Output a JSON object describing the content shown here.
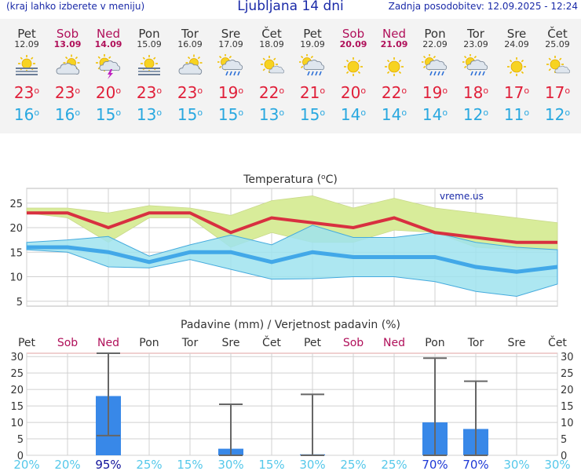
{
  "header": {
    "left": "(kraj lahko izberete v meniju)",
    "title": "Ljubljana 14 dni",
    "right": "Zadnja posodobitev: 12.09.2025 - 12:24"
  },
  "days": [
    {
      "name": "Pet",
      "date": "12.09",
      "weekend": false,
      "icon": "sun-cloud-mist-icon",
      "hi": "23",
      "lo": "16"
    },
    {
      "name": "Sob",
      "date": "13.09",
      "weekend": true,
      "icon": "sun-cloud-icon",
      "hi": "23",
      "lo": "16"
    },
    {
      "name": "Ned",
      "date": "14.09",
      "weekend": true,
      "icon": "thunderstorm-icon",
      "hi": "20",
      "lo": "15"
    },
    {
      "name": "Pon",
      "date": "15.09",
      "weekend": false,
      "icon": "sun-cloud-mist-icon",
      "hi": "23",
      "lo": "13"
    },
    {
      "name": "Tor",
      "date": "16.09",
      "weekend": false,
      "icon": "sun-cloud-icon",
      "hi": "23",
      "lo": "15"
    },
    {
      "name": "Sre",
      "date": "17.09",
      "weekend": false,
      "icon": "sun-cloud-rain-icon",
      "hi": "19",
      "lo": "15"
    },
    {
      "name": "Čet",
      "date": "18.09",
      "weekend": false,
      "icon": "sun-small-cloud-icon",
      "hi": "22",
      "lo": "13"
    },
    {
      "name": "Pet",
      "date": "19.09",
      "weekend": false,
      "icon": "sun-cloud-rain-icon",
      "hi": "21",
      "lo": "15"
    },
    {
      "name": "Sob",
      "date": "20.09",
      "weekend": true,
      "icon": "sun-icon",
      "hi": "20",
      "lo": "14"
    },
    {
      "name": "Ned",
      "date": "21.09",
      "weekend": true,
      "icon": "sun-icon",
      "hi": "22",
      "lo": "14"
    },
    {
      "name": "Pon",
      "date": "22.09",
      "weekend": false,
      "icon": "sun-cloud-rain-icon",
      "hi": "19",
      "lo": "14"
    },
    {
      "name": "Tor",
      "date": "23.09",
      "weekend": false,
      "icon": "sun-cloud-rain-icon",
      "hi": "18",
      "lo": "12"
    },
    {
      "name": "Sre",
      "date": "24.09",
      "weekend": false,
      "icon": "sun-icon",
      "hi": "17",
      "lo": "11"
    },
    {
      "name": "Čet",
      "date": "25.09",
      "weekend": false,
      "icon": "sun-small-cloud-icon",
      "hi": "17",
      "lo": "12"
    }
  ],
  "colors": {
    "max": "#d83040",
    "min": "#42a8e8",
    "maxband": "#d8ec9a",
    "minband": "#9fe3ee",
    "overlap": "#8fd87e",
    "bar": "#3888e8",
    "weekend": "#b0105a",
    "grid": "#d0d0d0"
  },
  "chart_data": [
    {
      "type": "line",
      "title": "Temperatura (°C)",
      "title_text": "Temperatura (",
      "title_unit": "C)",
      "watermark": "vreme.us",
      "ylim": [
        4,
        28
      ],
      "yticks": [
        5,
        10,
        15,
        20,
        25
      ],
      "grid": true,
      "x": [
        "12.09",
        "13.09",
        "14.09",
        "15.09",
        "16.09",
        "17.09",
        "18.09",
        "19.09",
        "20.09",
        "21.09",
        "22.09",
        "23.09",
        "24.09",
        "25.09"
      ],
      "series": [
        {
          "values": [
            23,
            23,
            20,
            23,
            23,
            19,
            22,
            21,
            20,
            22,
            19,
            18,
            17,
            17
          ]
        },
        {
          "values": [
            16,
            16,
            15,
            13,
            15,
            15,
            13,
            15,
            14,
            14,
            14,
            12,
            11,
            12
          ]
        },
        {
          "values": [
            24,
            24,
            23,
            24.5,
            24,
            22.5,
            25.5,
            26.5,
            24,
            26,
            24,
            23,
            22,
            21
          ]
        },
        {
          "values": [
            23,
            22,
            17,
            22,
            22,
            16,
            19,
            17,
            17,
            19.5,
            19,
            16,
            15.5,
            15.5
          ]
        },
        {
          "values": [
            17,
            17.5,
            18.2,
            14.2,
            16.5,
            18.5,
            16.5,
            20.5,
            18,
            18,
            19,
            17,
            16,
            15.5
          ]
        },
        {
          "values": [
            15.5,
            15,
            12,
            11.8,
            13.5,
            11.5,
            9.5,
            9.6,
            10,
            10,
            9,
            7,
            6,
            8.5
          ]
        }
      ]
    },
    {
      "type": "bar",
      "title": "Padavine (mm) / Verjetnost padavin (%)",
      "ylim": [
        0,
        31
      ],
      "yticks": [
        0,
        5,
        10,
        15,
        20,
        25,
        30
      ],
      "grid": true,
      "categories": [
        "Pet",
        "Sob",
        "Ned",
        "Pon",
        "Tor",
        "Sre",
        "Čet",
        "Pet",
        "Sob",
        "Ned",
        "Pon",
        "Tor",
        "Sre",
        "Čet"
      ],
      "weekend": [
        false,
        true,
        true,
        false,
        false,
        false,
        false,
        false,
        true,
        true,
        false,
        false,
        false,
        false
      ],
      "values": [
        0,
        0,
        18,
        0,
        0,
        2,
        0,
        0.3,
        0,
        0,
        10,
        8,
        0,
        0
      ],
      "error_low": [
        null,
        null,
        6,
        null,
        null,
        0,
        null,
        0,
        null,
        null,
        0,
        0,
        null,
        null
      ],
      "error_high": [
        null,
        null,
        31,
        null,
        null,
        15.5,
        null,
        18.5,
        null,
        null,
        29.5,
        22.5,
        null,
        null
      ],
      "probability": [
        "20%",
        "20%",
        "95%",
        "25%",
        "15%",
        "30%",
        "15%",
        "30%",
        "25%",
        "25%",
        "70%",
        "70%",
        "30%",
        "30%"
      ]
    }
  ]
}
